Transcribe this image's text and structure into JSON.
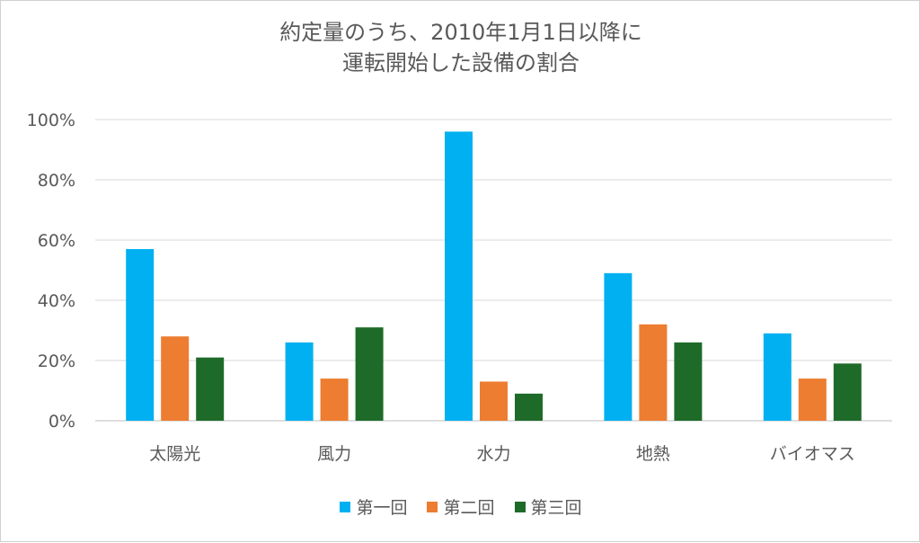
{
  "chart_data": {
    "type": "bar",
    "title_lines": [
      "約定量のうち、2010年1月1日以降に",
      "運転開始した設備の割合"
    ],
    "categories": [
      "太陽光",
      "風力",
      "水力",
      "地熱",
      "バイオマス"
    ],
    "series": [
      {
        "name": "第一回",
        "color": "#00B0F0",
        "values": [
          57,
          26,
          96,
          49,
          29
        ]
      },
      {
        "name": "第二回",
        "color": "#ED7D31",
        "values": [
          28,
          14,
          13,
          32,
          14
        ]
      },
      {
        "name": "第三回",
        "color": "#1E6B29",
        "values": [
          21,
          31,
          9,
          26,
          19
        ]
      }
    ],
    "ylim": [
      0,
      100
    ],
    "yticks": [
      0,
      20,
      40,
      60,
      80,
      100
    ],
    "ytick_labels": [
      "0%",
      "20%",
      "40%",
      "60%",
      "80%",
      "100%"
    ],
    "grid": true,
    "legend_position": "bottom"
  }
}
